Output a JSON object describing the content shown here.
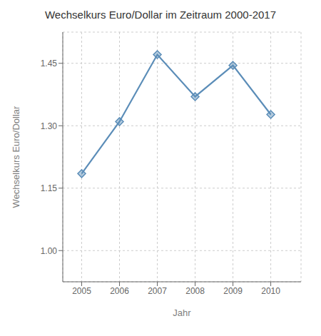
{
  "chart_data": {
    "type": "line",
    "title": "Wechselkurs Euro/Dollar im Zeitraum 2000-2017",
    "xlabel": "Jahr",
    "ylabel": "Wechselkurs Euro/Dollar",
    "x": [
      2005,
      2006,
      2007,
      2008,
      2009,
      2010
    ],
    "values": [
      1.185,
      1.31,
      1.471,
      1.37,
      1.445,
      1.327
    ],
    "color": "#5B8DB8",
    "marker": "diamond",
    "xlim": [
      2004.5,
      2010.8
    ],
    "xticks": [
      2005,
      2006,
      2007,
      2008,
      2009,
      2010
    ],
    "ylim": [
      0.925,
      1.525
    ],
    "yticks": [
      {
        "value": 1,
        "label": "1.00"
      },
      1.15,
      {
        "value": 1.3,
        "label": "1.30"
      },
      1.45
    ],
    "grid": true
  }
}
